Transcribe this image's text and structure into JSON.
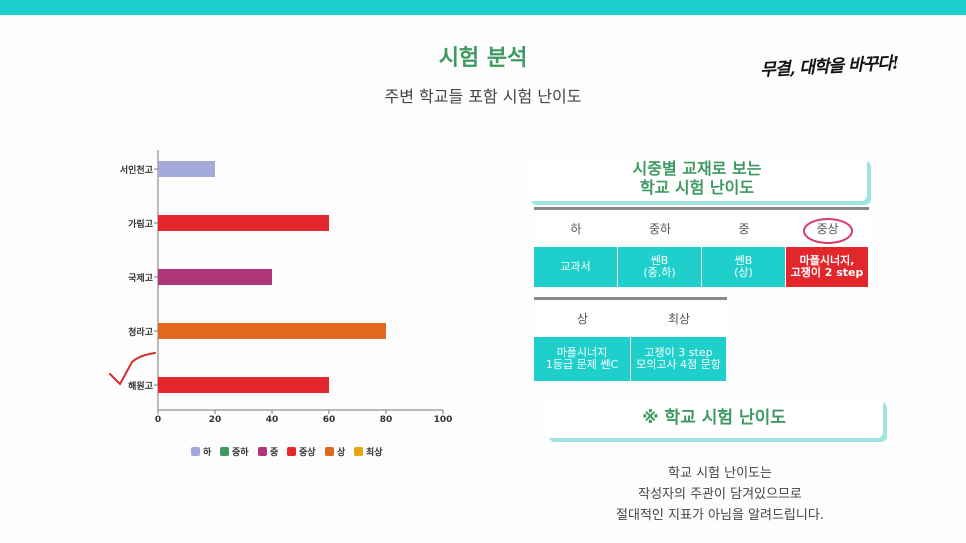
{
  "header": {
    "title": "시험 분석",
    "subtitle": "주변 학교들 포함 시험 난이도",
    "slogan": "무결, 대학을 바꾸다!"
  },
  "chart_data": {
    "type": "bar",
    "orientation": "horizontal",
    "categories": [
      "서인천고",
      "가림고",
      "국제고",
      "청라고",
      "해원고"
    ],
    "values": [
      20,
      60,
      40,
      80,
      60
    ],
    "colors": [
      "#a3a9d9",
      "#e2262c",
      "#b1357b",
      "#e0681f",
      "#e2262c"
    ],
    "xlim": [
      0,
      100
    ],
    "xticks": [
      "0",
      "20",
      "40",
      "60",
      "80",
      "100"
    ],
    "legend": [
      {
        "label": "하",
        "color": "#a3a9d9"
      },
      {
        "label": "중하",
        "color": "#3f9a62"
      },
      {
        "label": "중",
        "color": "#b1357b"
      },
      {
        "label": "중상",
        "color": "#e2262c"
      },
      {
        "label": "상",
        "color": "#e0681f"
      },
      {
        "label": "최상",
        "color": "#e8a514"
      }
    ],
    "legend_position": "bottom",
    "grid": false
  },
  "panel": {
    "title_line1": "시중별 교재로 보는",
    "title_line2": "학교 시험 난이도",
    "row1_headers": [
      "하",
      "중하",
      "중",
      "중상"
    ],
    "row1_values": [
      "교과서",
      "쎈B\n(중,하)",
      "쎈B\n(상)",
      "마플시너지,\n고쟁이 2 step"
    ],
    "row2_headers": [
      "상",
      "최상"
    ],
    "row2_values": [
      "마플시너지\n1등급 문제 쎈C",
      "고쟁이 3 step\n모의고사 4점 문항"
    ]
  },
  "note": {
    "title": "※ 학교 시험 난이도",
    "line1": "학교 시험 난이도는",
    "line2": "작성자의 주관이 담겨있으므로",
    "line3": "절대적인 지표가 아님을 알려드립니다."
  }
}
